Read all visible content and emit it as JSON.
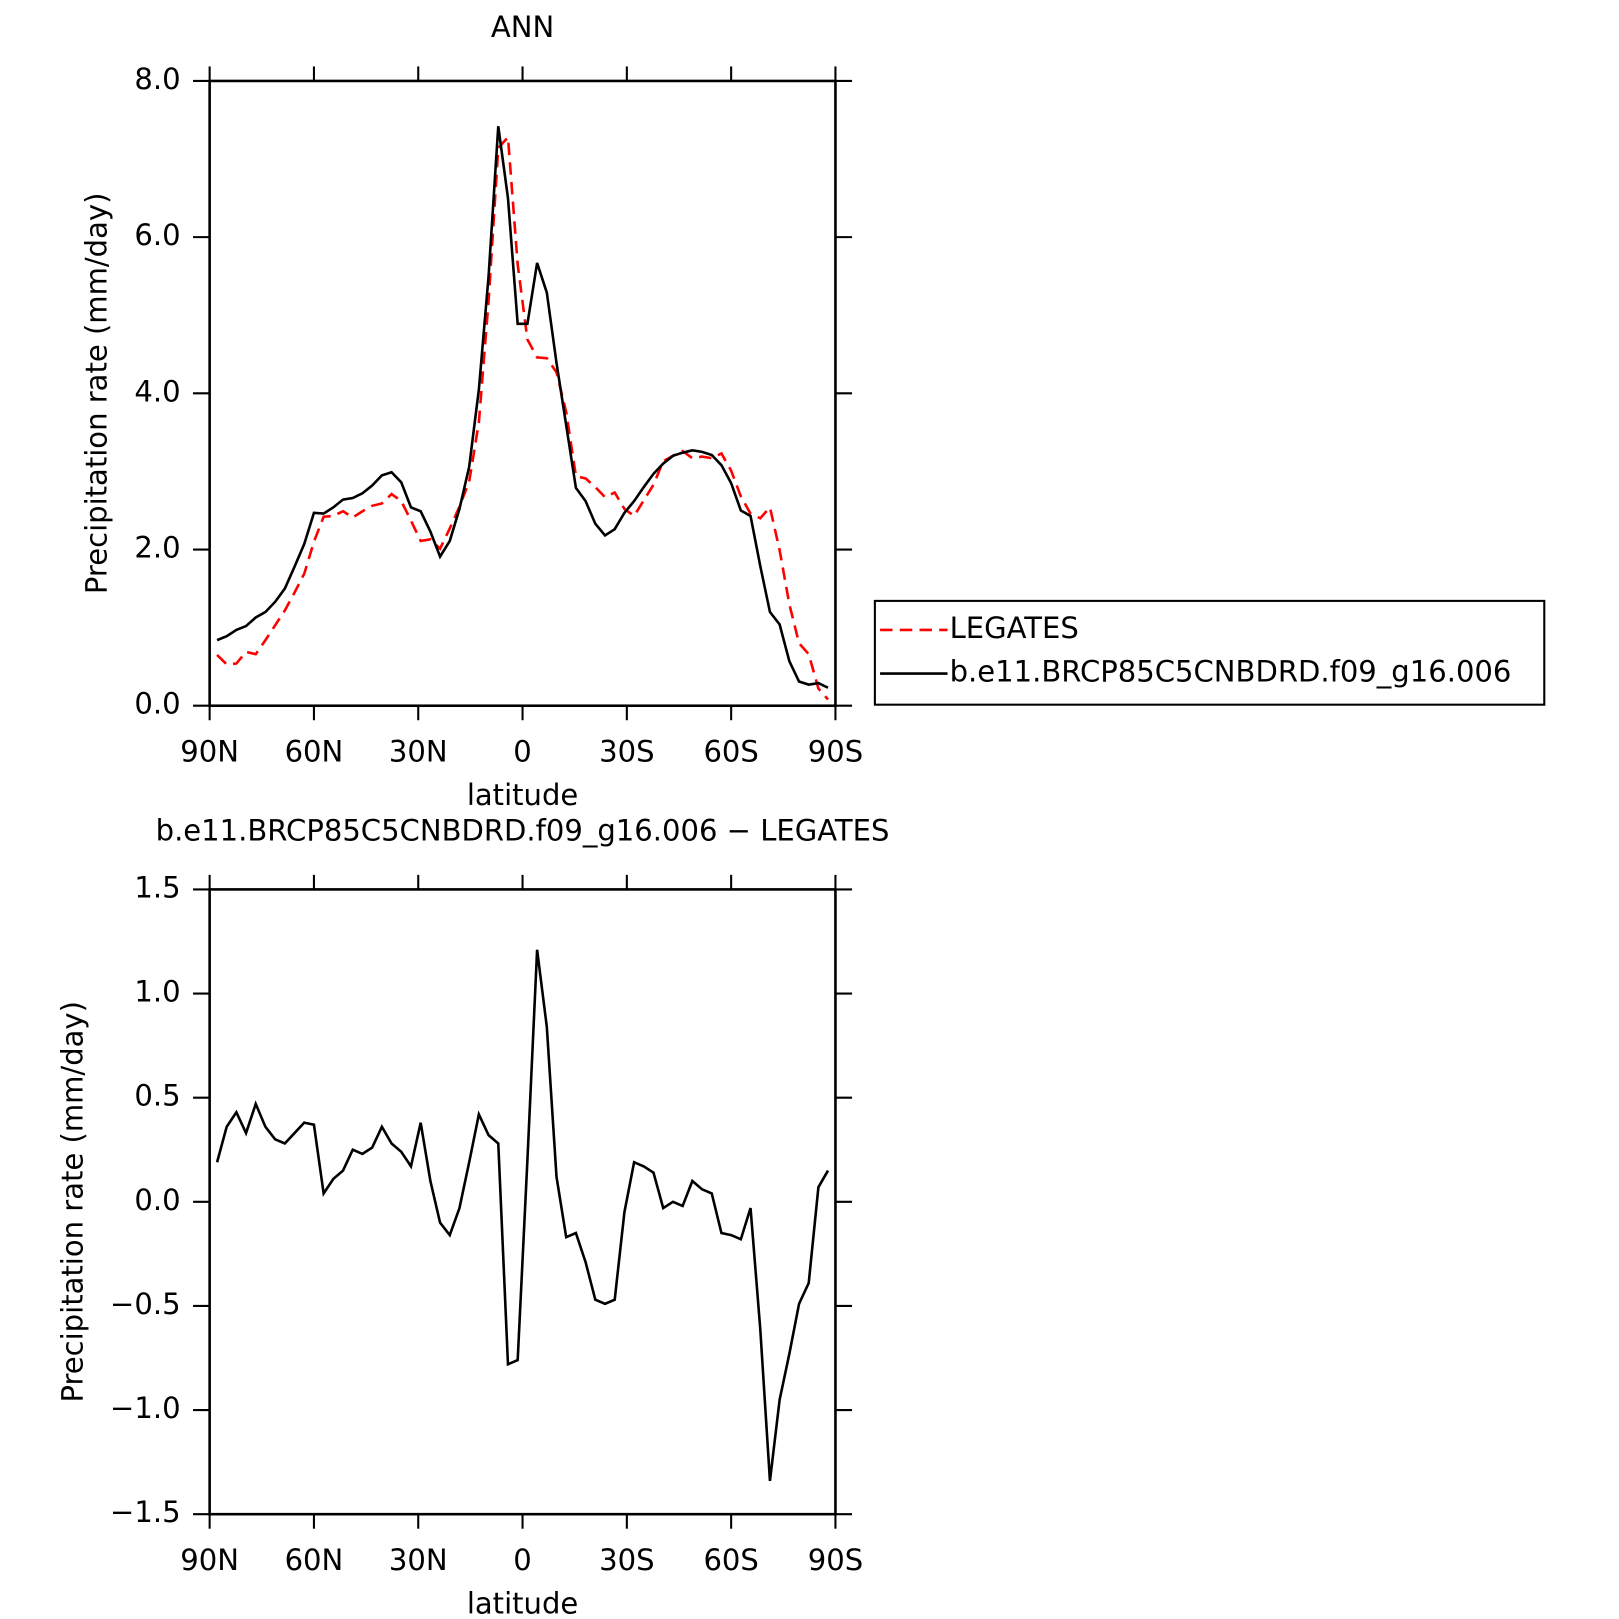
{
  "chart_data": [
    {
      "type": "line",
      "title": "ANN",
      "x_label": "latitude",
      "y_label": "Precipitation rate (mm/day)",
      "x": [
        87.86,
        85.1,
        82.31,
        79.53,
        76.74,
        73.95,
        71.16,
        68.37,
        65.58,
        62.79,
        60.0,
        57.21,
        54.42,
        51.63,
        48.84,
        46.05,
        43.26,
        40.46,
        37.67,
        34.88,
        32.09,
        29.3,
        26.51,
        23.72,
        20.93,
        18.14,
        15.35,
        12.56,
        9.77,
        6.98,
        4.19,
        1.4,
        -1.4,
        -4.19,
        -6.98,
        -9.77,
        -12.56,
        -15.35,
        -18.14,
        -20.93,
        -23.72,
        -26.51,
        -29.3,
        -32.09,
        -34.88,
        -37.67,
        -40.46,
        -43.26,
        -46.05,
        -48.84,
        -51.63,
        -54.42,
        -57.21,
        -60.0,
        -62.79,
        -65.58,
        -68.37,
        -71.16,
        -73.95,
        -76.74,
        -79.53,
        -82.31,
        -85.1,
        -87.86
      ],
      "xlim": [
        90,
        -90
      ],
      "xticks": [
        {
          "value": 90,
          "label": "90N"
        },
        {
          "value": 60,
          "label": "60N"
        },
        {
          "value": 30,
          "label": "30N"
        },
        0,
        {
          "value": -30,
          "label": "30S"
        },
        {
          "value": -60,
          "label": "60S"
        },
        {
          "value": -90,
          "label": "90S"
        }
      ],
      "ylim": [
        0,
        8
      ],
      "yticks": [
        {
          "value": 0,
          "label": "0.0"
        },
        {
          "value": 2,
          "label": "2.0"
        },
        {
          "value": 4,
          "label": "4.0"
        },
        {
          "value": 6,
          "label": "6.0"
        },
        {
          "value": 8,
          "label": "8.0"
        }
      ],
      "legend": "right",
      "series": [
        {
          "name": "LEGATES",
          "color": "#ff0000",
          "style": "dashed",
          "values": [
            0.65,
            0.53,
            0.54,
            0.69,
            0.66,
            0.84,
            1.03,
            1.22,
            1.45,
            1.69,
            2.1,
            2.42,
            2.43,
            2.49,
            2.41,
            2.49,
            2.56,
            2.59,
            2.71,
            2.62,
            2.37,
            2.11,
            2.13,
            2.01,
            2.27,
            2.55,
            2.87,
            3.63,
            5.18,
            7.14,
            7.28,
            5.65,
            4.69,
            4.46,
            4.45,
            4.27,
            3.76,
            2.94,
            2.91,
            2.8,
            2.67,
            2.73,
            2.52,
            2.43,
            2.63,
            2.83,
            3.13,
            3.2,
            3.26,
            3.17,
            3.19,
            3.17,
            3.23,
            3.01,
            2.68,
            2.46,
            2.4,
            2.54,
            1.99,
            1.3,
            0.8,
            0.66,
            0.22,
            0.08
          ]
        },
        {
          "name": "b.e11.BRCP85C5CNBDRD.f09_g16.006",
          "color": "#000000",
          "style": "solid",
          "values": [
            0.84,
            0.89,
            0.97,
            1.02,
            1.13,
            1.2,
            1.33,
            1.5,
            1.78,
            2.07,
            2.47,
            2.46,
            2.54,
            2.64,
            2.66,
            2.72,
            2.82,
            2.95,
            2.99,
            2.86,
            2.54,
            2.49,
            2.23,
            1.91,
            2.11,
            2.52,
            3.06,
            4.05,
            5.5,
            7.42,
            6.5,
            4.89,
            4.89,
            5.67,
            5.29,
            4.39,
            3.59,
            2.79,
            2.62,
            2.33,
            2.18,
            2.26,
            2.47,
            2.62,
            2.8,
            2.97,
            3.1,
            3.2,
            3.24,
            3.27,
            3.25,
            3.21,
            3.08,
            2.85,
            2.5,
            2.43,
            1.79,
            1.2,
            1.04,
            0.57,
            0.31,
            0.27,
            0.29,
            0.23
          ]
        }
      ]
    },
    {
      "type": "line",
      "title": "b.e11.BRCP85C5CNBDRD.f09_g16.006 − LEGATES",
      "x_label": "latitude",
      "y_label": "Precipitation rate (mm/day)",
      "x": [
        87.86,
        85.1,
        82.31,
        79.53,
        76.74,
        73.95,
        71.16,
        68.37,
        65.58,
        62.79,
        60.0,
        57.21,
        54.42,
        51.63,
        48.84,
        46.05,
        43.26,
        40.46,
        37.67,
        34.88,
        32.09,
        29.3,
        26.51,
        23.72,
        20.93,
        18.14,
        15.35,
        12.56,
        9.77,
        6.98,
        4.19,
        1.4,
        -1.4,
        -4.19,
        -6.98,
        -9.77,
        -12.56,
        -15.35,
        -18.14,
        -20.93,
        -23.72,
        -26.51,
        -29.3,
        -32.09,
        -34.88,
        -37.67,
        -40.46,
        -43.26,
        -46.05,
        -48.84,
        -51.63,
        -54.42,
        -57.21,
        -60.0,
        -62.79,
        -65.58,
        -68.37,
        -71.16,
        -73.95,
        -76.74,
        -79.53,
        -82.31,
        -85.1,
        -87.86
      ],
      "xlim": [
        90,
        -90
      ],
      "xticks": [
        {
          "value": 90,
          "label": "90N"
        },
        {
          "value": 60,
          "label": "60N"
        },
        {
          "value": 30,
          "label": "30N"
        },
        0,
        {
          "value": -30,
          "label": "30S"
        },
        {
          "value": -60,
          "label": "60S"
        },
        {
          "value": -90,
          "label": "90S"
        }
      ],
      "ylim": [
        -1.5,
        1.5
      ],
      "yticks": [
        {
          "value": -1.5,
          "label": "−1.5"
        },
        {
          "value": -1,
          "label": "−1.0"
        },
        {
          "value": -0.5,
          "label": "−0.5"
        },
        {
          "value": 0,
          "label": "0.0"
        },
        0.5,
        {
          "value": 1,
          "label": "1.0"
        },
        1.5
      ],
      "color": "#000000",
      "values": [
        0.19,
        0.36,
        0.43,
        0.33,
        0.47,
        0.36,
        0.3,
        0.28,
        0.33,
        0.38,
        0.37,
        0.04,
        0.11,
        0.15,
        0.25,
        0.23,
        0.26,
        0.36,
        0.28,
        0.24,
        0.17,
        0.38,
        0.1,
        -0.1,
        -0.16,
        -0.03,
        0.19,
        0.42,
        0.32,
        0.28,
        -0.78,
        -0.76,
        0.2,
        1.21,
        0.84,
        0.12,
        -0.17,
        -0.15,
        -0.29,
        -0.47,
        -0.49,
        -0.47,
        -0.05,
        0.19,
        0.17,
        0.14,
        -0.03,
        0.0,
        -0.02,
        0.1,
        0.06,
        0.04,
        -0.15,
        -0.16,
        -0.18,
        -0.03,
        -0.61,
        -1.34,
        -0.95,
        -0.73,
        -0.49,
        -0.39,
        0.07,
        0.15
      ]
    }
  ]
}
